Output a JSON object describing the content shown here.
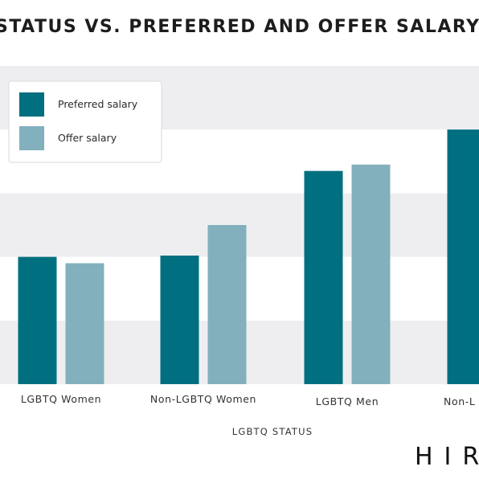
{
  "chart_data": {
    "type": "bar",
    "title": "STATUS VS. PREFERRED AND OFFER SALARY",
    "xlabel": "LGBTQ STATUS",
    "ylabel": "",
    "categories": [
      "LGBTQ Women",
      "Non-LGBTQ Women",
      "LGBTQ Men",
      "Non-L"
    ],
    "series": [
      {
        "name": "Preferred salary",
        "color": "#006f7f",
        "values": [
          2.0,
          2.02,
          3.35,
          4.0
        ]
      },
      {
        "name": "Offer salary",
        "color": "#82b0bd",
        "values": [
          1.9,
          2.5,
          3.45,
          null
        ]
      }
    ],
    "ylim": [
      0,
      5
    ],
    "grid": true,
    "grid_bands": [
      "#eeeef1",
      "#ffffff"
    ],
    "legend_position": "top-left"
  },
  "logo": {
    "text": "HIR"
  }
}
